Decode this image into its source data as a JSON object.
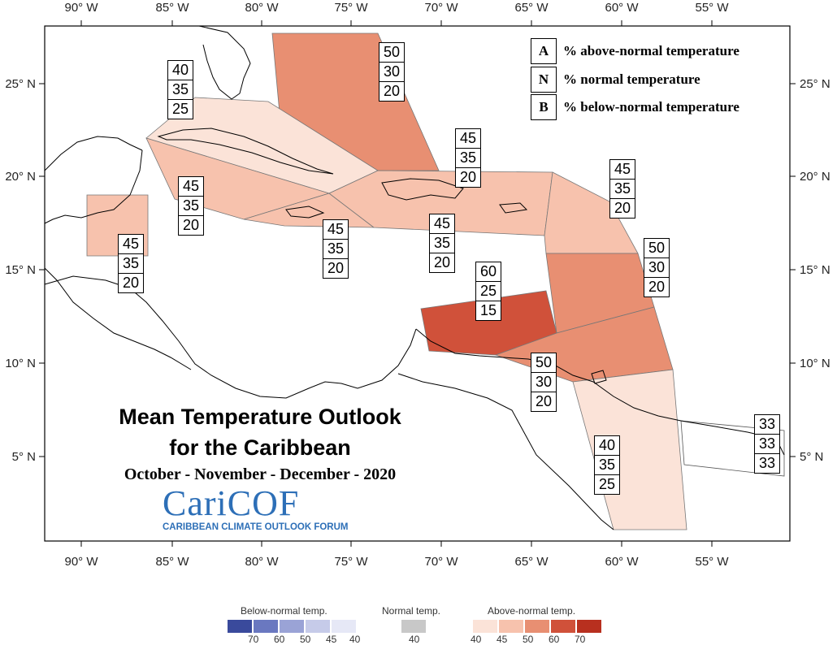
{
  "map": {
    "lon_ticks": [
      "90° W",
      "85° W",
      "80° W",
      "75° W",
      "70° W",
      "65° W",
      "60° W",
      "55° W"
    ],
    "lat_ticks": [
      "25° N",
      "20° N",
      "15° N",
      "10° N",
      "5° N"
    ]
  },
  "key": {
    "rows": [
      {
        "letter": "A",
        "text": "% above-normal temperature"
      },
      {
        "letter": "N",
        "text": "% normal temperature"
      },
      {
        "letter": "B",
        "text": "% below-normal temperature"
      }
    ]
  },
  "regions": [
    {
      "name": "bahamas",
      "above": "50",
      "normal": "30",
      "below": "20",
      "color": "#e88f72"
    },
    {
      "name": "cuba",
      "above": "40",
      "normal": "35",
      "below": "25",
      "color": "#fbe3d8"
    },
    {
      "name": "caribbean-west",
      "above": "45",
      "normal": "35",
      "below": "20",
      "color": "#f7c2ad"
    },
    {
      "name": "belize",
      "above": "45",
      "normal": "35",
      "below": "20",
      "color": "#f7c2ad"
    },
    {
      "name": "jamaica",
      "above": "45",
      "normal": "35",
      "below": "20",
      "color": "#f7c2ad"
    },
    {
      "name": "hispaniola",
      "above": "45",
      "normal": "35",
      "below": "20",
      "color": "#f7c2ad"
    },
    {
      "name": "virgin-islands",
      "above": "45",
      "normal": "35",
      "below": "20",
      "color": "#f7c2ad"
    },
    {
      "name": "windward-islands",
      "above": "50",
      "normal": "30",
      "below": "20",
      "color": "#e88f72"
    },
    {
      "name": "abc-islands",
      "above": "60",
      "normal": "25",
      "below": "15",
      "color": "#d0513a"
    },
    {
      "name": "trinidad",
      "above": "50",
      "normal": "30",
      "below": "20",
      "color": "#e88f72"
    },
    {
      "name": "guyana",
      "above": "40",
      "normal": "35",
      "below": "25",
      "color": "#fbe3d8"
    },
    {
      "name": "suriname",
      "above": "33",
      "normal": "33",
      "below": "33",
      "color": "#ffffff"
    }
  ],
  "title": {
    "line1": "Mean Temperature Outlook",
    "line2": "for the Caribbean",
    "period": "October - November - December - 2020"
  },
  "logo": {
    "name": "CariCOF",
    "tagline": "CARIBBEAN CLIMATE OUTLOOK FORUM"
  },
  "legend": {
    "below": {
      "title": "Below-normal temp.",
      "values": [
        "70",
        "60",
        "50",
        "45",
        "40"
      ],
      "colors": [
        "#3a4a9c",
        "#6a78c0",
        "#9aa3d6",
        "#c6cbe9",
        "#e6e8f6"
      ]
    },
    "normal": {
      "title": "Normal temp.",
      "values": [
        "40"
      ],
      "colors": [
        "#c8c8c8"
      ]
    },
    "above": {
      "title": "Above-normal temp.",
      "values": [
        "40",
        "45",
        "50",
        "60",
        "70"
      ],
      "colors": [
        "#fbe3d8",
        "#f7c2ad",
        "#e88f72",
        "#d0513a",
        "#b8301f"
      ]
    }
  }
}
